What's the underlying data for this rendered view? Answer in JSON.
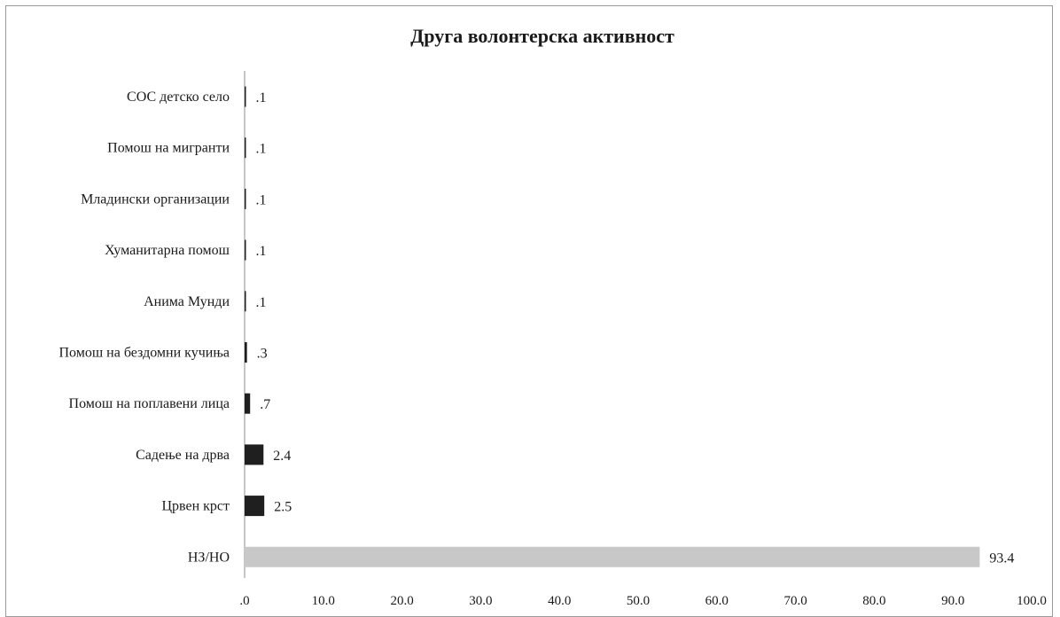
{
  "chart_data": {
    "type": "bar",
    "orientation": "horizontal",
    "title": "Друга волонтерска активност",
    "categories": [
      "СОС детско село",
      "Помош на мигранти",
      "Младински организации",
      "Хуманитарна помош",
      "Анима Мунди",
      "Помош на бездомни кучиња",
      "Помош на поплавени лица",
      "Садење на дрва",
      "Црвен крст",
      "НЗ/НО"
    ],
    "values": [
      0.1,
      0.1,
      0.1,
      0.1,
      0.1,
      0.3,
      0.7,
      2.4,
      2.5,
      93.4
    ],
    "value_labels": [
      ".1",
      ".1",
      ".1",
      ".1",
      ".1",
      ".3",
      ".7",
      "2.4",
      "2.5",
      "93.4"
    ],
    "bar_colors": [
      "#1f1f1f",
      "#1f1f1f",
      "#1f1f1f",
      "#1f1f1f",
      "#1f1f1f",
      "#1f1f1f",
      "#1f1f1f",
      "#1f1f1f",
      "#1f1f1f",
      "#c8c8c8"
    ],
    "xlim": [
      0,
      100
    ],
    "x_ticks": [
      ".0",
      "10.0",
      "20.0",
      "30.0",
      "40.0",
      "50.0",
      "60.0",
      "70.0",
      "80.0",
      "90.0",
      "100.0"
    ],
    "grid": false,
    "legend": "none",
    "xlabel": "",
    "ylabel": ""
  }
}
